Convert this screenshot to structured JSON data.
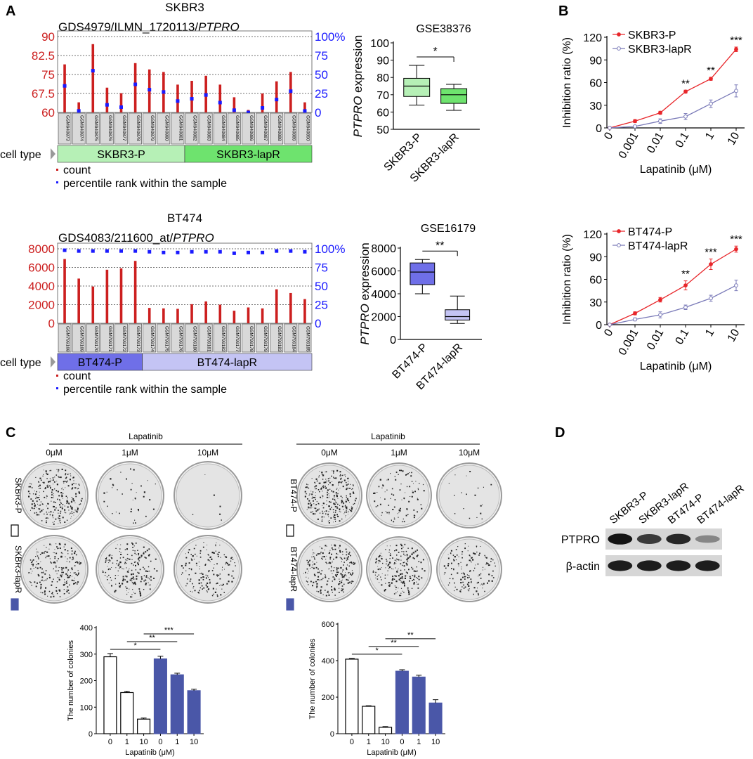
{
  "panel_labels": {
    "A": "A",
    "B": "B",
    "C": "C",
    "D": "D"
  },
  "colors": {
    "red": "#cc1f1f",
    "blue": "#1a1aff",
    "green_light": "#b6f0b6",
    "green_dark": "#6ee36e",
    "purple_dark": "#6f6fe8",
    "purple_light": "#c4c4f4",
    "navy": "#4a57a8",
    "line_red": "#e8262a",
    "line_purple": "#7a7ab8",
    "black": "#000000"
  },
  "chart_data": [
    {
      "id": "skbr3_gds",
      "type": "bar",
      "title": "SKBR3",
      "subtitle": "GDS4979/ILMN_1720113/",
      "gene": "PTPRO",
      "left_axis": {
        "ticks": [
          "90",
          "82.5",
          "75",
          "67.5",
          "60"
        ],
        "ylim": [
          60,
          90
        ],
        "color": "#cc1f1f"
      },
      "right_axis": {
        "ticks": [
          "100%",
          "75",
          "50",
          "25",
          "0"
        ],
        "ylim": [
          0,
          100
        ],
        "color": "#1a1aff"
      },
      "samples": [
        "GSM940873",
        "GSM940874",
        "GSM940875",
        "GSM940876",
        "GSM940877",
        "GSM940878",
        "GSM940879",
        "GSM940880",
        "GSM940881",
        "GSM940882",
        "GSM940883",
        "GSM940884",
        "GSM940885",
        "GSM940886",
        "GSM940887",
        "GSM940888",
        "GSM940889",
        "GSM940890"
      ],
      "count": [
        79,
        64,
        87,
        69.8,
        67.6,
        79.5,
        77,
        76,
        71,
        72.5,
        74.5,
        71,
        66,
        61,
        67.5,
        72.3,
        76,
        64
      ],
      "percentile": [
        35,
        2,
        55,
        10,
        7,
        37,
        30,
        27,
        15,
        18,
        23,
        13,
        3,
        0,
        6,
        17,
        28,
        2
      ],
      "cell_type_label": "cell type",
      "groups": [
        {
          "name": "SKBR3-P",
          "n": 9,
          "color": "#b6f0b6"
        },
        {
          "name": "SKBR3-lapR",
          "n": 9,
          "color": "#6ee36e"
        }
      ],
      "legend": [
        "count",
        "percentile rank within the sample"
      ]
    },
    {
      "id": "bt474_gds",
      "type": "bar",
      "title": "BT474",
      "subtitle": "GDS4083/211600_at/",
      "gene": "PTPRO",
      "left_axis": {
        "ticks": [
          "8000",
          "6000",
          "4000",
          "2000",
          "0"
        ],
        "ylim": [
          0,
          8000
        ],
        "color": "#cc1f1f"
      },
      "right_axis": {
        "ticks": [
          "100%",
          "75",
          "50",
          "25",
          "0"
        ],
        "ylim": [
          0,
          100
        ],
        "color": "#1a1aff"
      },
      "samples": [
        "GSM799168",
        "GSM799169",
        "GSM799170",
        "GSM799171",
        "GSM799172",
        "GSM799173",
        "GSM799174",
        "GSM799175",
        "GSM799176",
        "GSM799180",
        "GSM799181",
        "GSM799182",
        "GSM799177",
        "GSM799178",
        "GSM799179",
        "GSM799183",
        "GSM799184",
        "GSM799185"
      ],
      "count": [
        6900,
        4800,
        3950,
        5750,
        5900,
        6700,
        1650,
        1600,
        1550,
        2050,
        2350,
        2000,
        1350,
        1700,
        1600,
        3650,
        3250,
        2600
      ],
      "percentile": [
        98,
        97,
        97,
        97,
        97,
        97,
        96,
        95,
        95,
        96,
        96,
        96,
        94,
        95,
        95,
        97,
        97,
        96
      ],
      "cell_type_label": "cell type",
      "groups": [
        {
          "name": "BT474-P",
          "n": 6,
          "color": "#6f6fe8"
        },
        {
          "name": "BT474-lapR",
          "n": 12,
          "color": "#c4c4f4"
        }
      ],
      "legend": [
        "count",
        "percentile rank within the sample"
      ]
    },
    {
      "id": "gse38376",
      "type": "box",
      "title": "GSE38376",
      "ylabel_gene": "PTPRO",
      "ylabel_suffix": " expression",
      "ylim": [
        50,
        100
      ],
      "yticks": [
        "100",
        "90",
        "80",
        "70",
        "60",
        "50"
      ],
      "categories": [
        "SKBR3-P",
        "SKBR3-lapR"
      ],
      "boxes": [
        {
          "min": 64,
          "q1": 69,
          "median": 75,
          "q3": 79.5,
          "max": 87,
          "color": "#b6f0b6"
        },
        {
          "min": 61,
          "q1": 65,
          "median": 70,
          "q3": 73.5,
          "max": 76,
          "color": "#6ee36e"
        }
      ],
      "significance": "*"
    },
    {
      "id": "gse16179",
      "type": "box",
      "title": "GSE16179",
      "ylabel_gene": "PTPRO",
      "ylabel_suffix": " expression",
      "ylim": [
        0,
        8000
      ],
      "yticks": [
        "8000",
        "6000",
        "4000",
        "2000",
        "0"
      ],
      "categories": [
        "BT474-P",
        "BT474-lapR"
      ],
      "boxes": [
        {
          "min": 4000,
          "q1": 4800,
          "median": 5900,
          "q3": 6700,
          "max": 7000,
          "color": "#6f6fe8"
        },
        {
          "min": 1400,
          "q1": 1700,
          "median": 2000,
          "q3": 2600,
          "max": 3800,
          "color": "#c4c4f4"
        }
      ],
      "significance": "**"
    },
    {
      "id": "skbr3_inhibition",
      "type": "line",
      "ylabel": "Inhibition ratio (%)",
      "xlabel": "Lapatinib (μM)",
      "x": [
        "0",
        "0.001",
        "0.01",
        "0.1",
        "1",
        "10"
      ],
      "yticks": [
        "120",
        "90",
        "60",
        "30",
        "0"
      ],
      "ylim": [
        0,
        120
      ],
      "series": [
        {
          "name": "SKBR3-P",
          "values": [
            0,
            9,
            20,
            48,
            65,
            104
          ],
          "errors": [
            1,
            2,
            2,
            2,
            2,
            3
          ],
          "color": "#e8262a",
          "marker": "filled"
        },
        {
          "name": "SKBR3-lapR",
          "values": [
            0,
            2,
            9,
            15,
            32,
            49
          ],
          "errors": [
            1,
            1,
            3,
            4,
            5,
            8
          ],
          "color": "#7a7ab8",
          "marker": "open"
        }
      ],
      "significance": [
        "",
        "",
        "",
        "**",
        "**",
        "***"
      ]
    },
    {
      "id": "bt474_inhibition",
      "type": "line",
      "ylabel": "Inhibition ratio (%)",
      "xlabel": "Lapatinib (μM)",
      "x": [
        "0",
        "0.001",
        "0.01",
        "0.1",
        "1",
        "10"
      ],
      "yticks": [
        "120",
        "90",
        "60",
        "30",
        "0"
      ],
      "ylim": [
        0,
        120
      ],
      "series": [
        {
          "name": "BT474-P",
          "values": [
            0,
            15,
            33,
            52,
            80,
            100
          ],
          "errors": [
            1,
            2,
            3,
            6,
            7,
            4
          ],
          "color": "#e8262a",
          "marker": "filled"
        },
        {
          "name": "BT474-lapR",
          "values": [
            0,
            7,
            13,
            23,
            35,
            52
          ],
          "errors": [
            1,
            2,
            4,
            3,
            4,
            7
          ],
          "color": "#7a7ab8",
          "marker": "open"
        }
      ],
      "significance": [
        "",
        "",
        "",
        "**",
        "***",
        "***"
      ]
    },
    {
      "id": "skbr3_colonies",
      "type": "bar",
      "ylabel": "The number of colonies",
      "xlabel": "Lapatinib (μM)",
      "categories": [
        "0",
        "1",
        "10",
        "0",
        "1",
        "10"
      ],
      "values": [
        290,
        155,
        55,
        282,
        222,
        162
      ],
      "errors": [
        12,
        5,
        4,
        10,
        6,
        6
      ],
      "fills": [
        "white",
        "white",
        "white",
        "#4a57a8",
        "#4a57a8",
        "#4a57a8"
      ],
      "yticks": [
        "400",
        "300",
        "200",
        "100",
        "0"
      ],
      "ylim": [
        0,
        400
      ],
      "significance": [
        {
          "from": 0,
          "to": 3,
          "label": "*"
        },
        {
          "from": 1,
          "to": 4,
          "label": "**"
        },
        {
          "from": 2,
          "to": 5,
          "label": "***"
        }
      ]
    },
    {
      "id": "bt474_colonies",
      "type": "bar",
      "ylabel": "The number of colonies",
      "xlabel": "Lapatinib (μM)",
      "categories": [
        "0",
        "1",
        "10",
        "0",
        "1",
        "10"
      ],
      "values": [
        408,
        150,
        35,
        342,
        310,
        168
      ],
      "errors": [
        4,
        3,
        4,
        8,
        10,
        18
      ],
      "fills": [
        "white",
        "white",
        "white",
        "#4a57a8",
        "#4a57a8",
        "#4a57a8"
      ],
      "yticks": [
        "600",
        "400",
        "200",
        "0"
      ],
      "ylim": [
        0,
        600
      ],
      "significance": [
        {
          "from": 0,
          "to": 3,
          "label": "*"
        },
        {
          "from": 1,
          "to": 4,
          "label": "**"
        },
        {
          "from": 2,
          "to": 5,
          "label": "**"
        }
      ]
    }
  ],
  "colony_panels": [
    {
      "id": "skbr3",
      "title": "Lapatinib",
      "doses": [
        "0μM",
        "1μM",
        "10μM"
      ],
      "rows": [
        {
          "label": "SKBR3-P",
          "density": [
            0.85,
            0.12,
            0.02
          ],
          "swatch": "white"
        },
        {
          "label": "SKBR3-lapR",
          "density": [
            0.7,
            0.65,
            0.5
          ],
          "swatch": "#4a57a8"
        }
      ]
    },
    {
      "id": "bt474",
      "title": "Lapatinib",
      "doses": [
        "0μM",
        "1μM",
        "10μM"
      ],
      "rows": [
        {
          "label": "BT474-P",
          "density": [
            0.9,
            0.3,
            0.06
          ],
          "swatch": "white"
        },
        {
          "label": "BT474-lapR",
          "density": [
            0.75,
            0.7,
            0.45
          ],
          "swatch": "#4a57a8"
        }
      ]
    }
  ],
  "western_blot": {
    "lanes": [
      "SKBR3-P",
      "SKBR3-lapR",
      "BT474-P",
      "BT474-lapR"
    ],
    "rows": [
      {
        "label": "PTPRO",
        "intensity": [
          0.95,
          0.75,
          0.85,
          0.35
        ]
      },
      {
        "label": "β-actin",
        "intensity": [
          0.9,
          0.9,
          0.9,
          0.9
        ]
      }
    ]
  }
}
